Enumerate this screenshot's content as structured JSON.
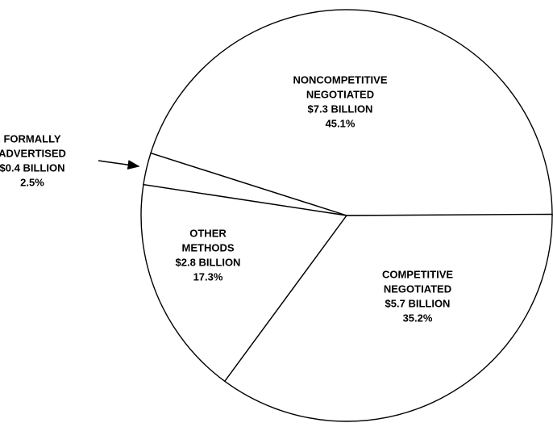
{
  "chart_data": {
    "type": "pie",
    "categories": [
      [
        "NONCOMPETITIVE",
        "NEGOTIATED"
      ],
      [
        "FORMALLY",
        "ADVERTISED"
      ],
      [
        "OTHER",
        "METHODS"
      ],
      [
        "COMPETITIVE",
        "NEGOTIATED"
      ]
    ],
    "amount_labels": [
      "$7.3 BILLION",
      "$0.4 BILLION",
      "$2.8 BILLION",
      "$5.7 BILLION"
    ],
    "values": [
      45.1,
      2.5,
      17.3,
      35.2
    ],
    "value_labels": [
      "45.1%",
      "2.5%",
      "17.3%",
      "35.2%"
    ]
  }
}
